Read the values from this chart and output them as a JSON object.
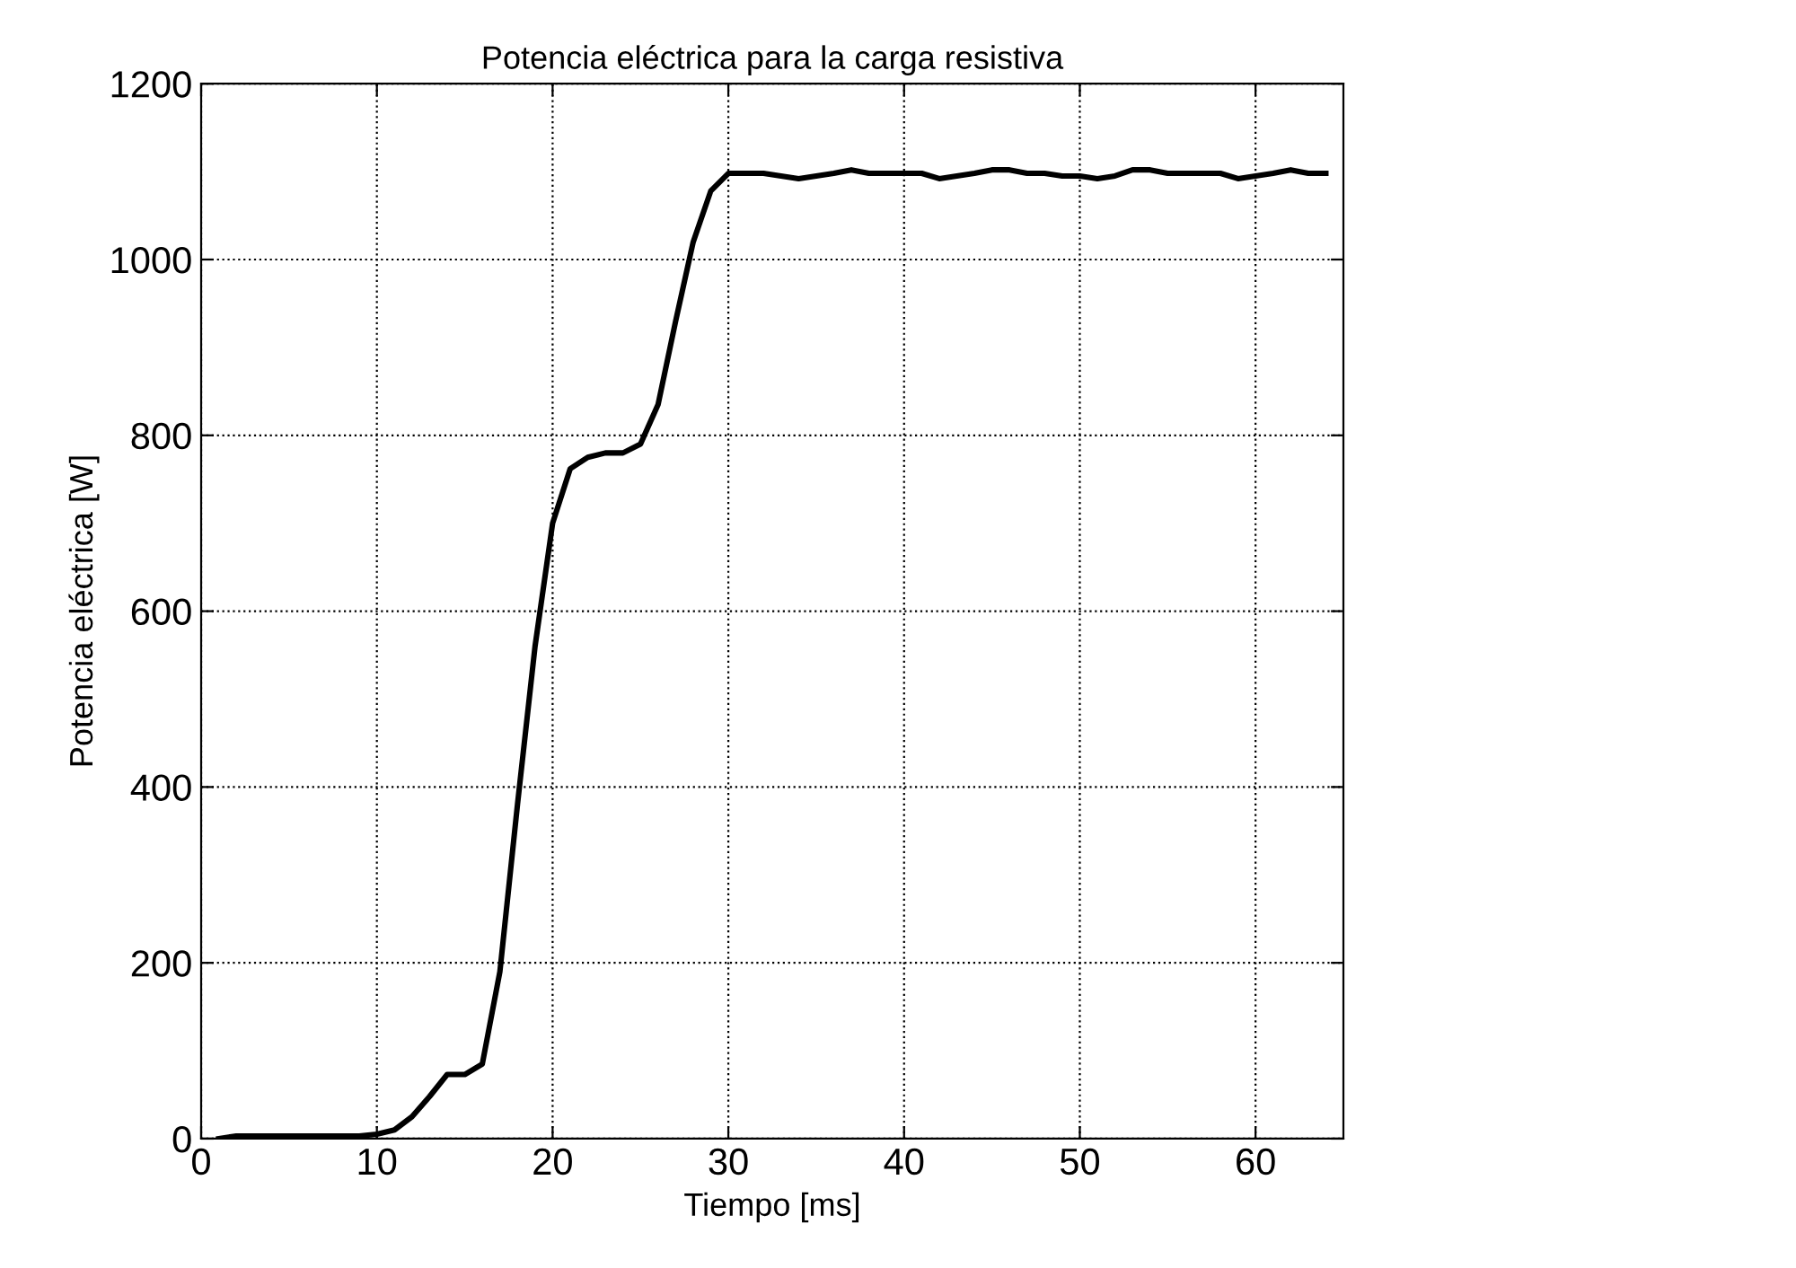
{
  "chart_data": {
    "type": "line",
    "title": "Potencia eléctrica para la carga resistiva",
    "xlabel": "Tiempo [ms]",
    "ylabel": "Potencia eléctrica [W]",
    "x": [
      1,
      2,
      3,
      4,
      5,
      6,
      7,
      8,
      9,
      10,
      11,
      12,
      13,
      14,
      15,
      16,
      17,
      18,
      19,
      20,
      21,
      22,
      23,
      24,
      25,
      26,
      27,
      28,
      29,
      30,
      31,
      32,
      33,
      34,
      35,
      36,
      37,
      38,
      39,
      40,
      41,
      42,
      43,
      44,
      45,
      46,
      47,
      48,
      49,
      50,
      51,
      52,
      53,
      54,
      55,
      56,
      57,
      58,
      59,
      60,
      61,
      62,
      63,
      64
    ],
    "series": [
      {
        "color": "#000000",
        "values": [
          0,
          3,
          3,
          3,
          3,
          3,
          3,
          3,
          3,
          5,
          10,
          25,
          48,
          73,
          73,
          85,
          190,
          380,
          560,
          700,
          762,
          775,
          780,
          780,
          790,
          835,
          930,
          1020,
          1078,
          1098,
          1098,
          1098,
          1095,
          1092,
          1095,
          1098,
          1102,
          1098,
          1098,
          1098,
          1098,
          1092,
          1095,
          1098,
          1102,
          1102,
          1098,
          1098,
          1095,
          1095,
          1092,
          1095,
          1102,
          1102,
          1098,
          1098,
          1098,
          1098,
          1092,
          1095,
          1098,
          1102,
          1098,
          1098
        ]
      }
    ],
    "xlim": [
      0,
      65
    ],
    "ylim": [
      0,
      1200
    ],
    "xticks": [
      0,
      10,
      20,
      30,
      40,
      50,
      60
    ],
    "yticks": [
      0,
      200,
      400,
      600,
      800,
      1000,
      1200
    ],
    "grid": true,
    "marker": "none",
    "line_style": "solid",
    "legend": false
  }
}
